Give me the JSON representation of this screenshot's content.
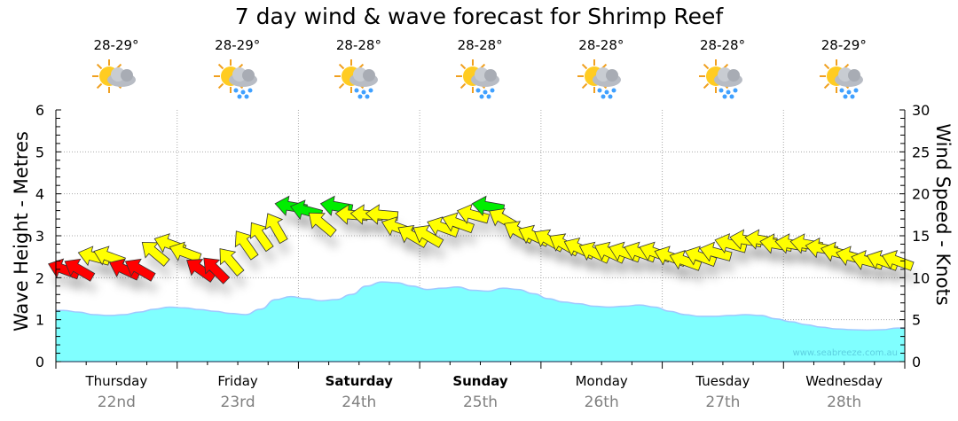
{
  "title": "7 day wind & wave forecast for Shrimp Reef",
  "days": [
    {
      "name": "Thursday",
      "date": "22nd",
      "temp": "28-29°",
      "icon": "sun-cloud-icon",
      "bold": false
    },
    {
      "name": "Friday",
      "date": "23rd",
      "temp": "28-29°",
      "icon": "sun-cloud-rain-icon",
      "bold": false
    },
    {
      "name": "Saturday",
      "date": "24th",
      "temp": "28-28°",
      "icon": "sun-cloud-rain-icon",
      "bold": true
    },
    {
      "name": "Sunday",
      "date": "25th",
      "temp": "28-28°",
      "icon": "sun-cloud-rain-icon",
      "bold": true
    },
    {
      "name": "Monday",
      "date": "26th",
      "temp": "28-28°",
      "icon": "sun-cloud-rain-icon",
      "bold": false
    },
    {
      "name": "Tuesday",
      "date": "27th",
      "temp": "28-28°",
      "icon": "sun-cloud-rain-icon",
      "bold": false
    },
    {
      "name": "Wednesday",
      "date": "28th",
      "temp": "28-29°",
      "icon": "sun-cloud-rain-icon",
      "bold": false
    }
  ],
  "watermark": "www.seabreeze.com.au",
  "chart_data": {
    "type": "area",
    "title": "7 day wind & wave forecast for Shrimp Reef",
    "ylabel": "Wave Height - Metres",
    "y2label": "Wind Speed - Knots",
    "ylim": [
      0,
      6
    ],
    "y2lim": [
      0,
      30
    ],
    "yticks": [
      "0",
      "1",
      "2",
      "3",
      "4",
      "5",
      "6"
    ],
    "y2ticks": [
      "0",
      "5",
      "10",
      "15",
      "20",
      "25",
      "30"
    ],
    "grid": true,
    "points_per_day": 8,
    "colors": {
      "wave": "#80ffff",
      "wave_line": "#a0c8ff",
      "red": "#ff0000",
      "yellow": "#ffff00",
      "green": "#00ee00"
    },
    "wave_height_m": [
      1.22,
      1.18,
      1.12,
      1.1,
      1.12,
      1.18,
      1.25,
      1.3,
      1.28,
      1.24,
      1.2,
      1.15,
      1.12,
      1.25,
      1.48,
      1.55,
      1.5,
      1.45,
      1.48,
      1.6,
      1.8,
      1.9,
      1.88,
      1.8,
      1.72,
      1.75,
      1.78,
      1.7,
      1.68,
      1.75,
      1.72,
      1.62,
      1.5,
      1.42,
      1.38,
      1.32,
      1.3,
      1.32,
      1.35,
      1.3,
      1.2,
      1.12,
      1.08,
      1.08,
      1.1,
      1.12,
      1.1,
      1.02,
      0.95,
      0.88,
      0.82,
      0.78,
      0.76,
      0.75,
      0.76,
      0.8
    ],
    "wind_knots": [
      11,
      11,
      12.5,
      12.5,
      11,
      11,
      13,
      14,
      13,
      11,
      11,
      12,
      14,
      15,
      16,
      18.5,
      18,
      16.5,
      18.5,
      17.5,
      17.5,
      17.5,
      16,
      15,
      15,
      16,
      16.5,
      17.5,
      18.5,
      17,
      15.5,
      15,
      14.5,
      14,
      13.5,
      13,
      13,
      13,
      13,
      13,
      12.5,
      12,
      12.5,
      13,
      14,
      14.5,
      14.5,
      14,
      14,
      14,
      13.5,
      13,
      12.5,
      12,
      12,
      12
    ],
    "wind_color": [
      "red",
      "red",
      "yellow",
      "yellow",
      "red",
      "red",
      "yellow",
      "yellow",
      "yellow",
      "red",
      "red",
      "yellow",
      "yellow",
      "yellow",
      "yellow",
      "green",
      "green",
      "yellow",
      "green",
      "yellow",
      "yellow",
      "yellow",
      "yellow",
      "yellow",
      "yellow",
      "yellow",
      "yellow",
      "yellow",
      "green",
      "yellow",
      "yellow",
      "yellow",
      "yellow",
      "yellow",
      "yellow",
      "yellow",
      "yellow",
      "yellow",
      "yellow",
      "yellow",
      "yellow",
      "yellow",
      "yellow",
      "yellow",
      "yellow",
      "yellow",
      "yellow",
      "yellow",
      "yellow",
      "yellow",
      "yellow",
      "yellow",
      "yellow",
      "yellow",
      "yellow",
      "yellow"
    ],
    "wind_direction_deg": [
      -160,
      -150,
      -165,
      -160,
      -155,
      -150,
      -140,
      -160,
      -160,
      -145,
      -135,
      -130,
      -125,
      -125,
      -120,
      -170,
      -165,
      -140,
      -170,
      -175,
      -175,
      -175,
      -160,
      -150,
      -150,
      -160,
      -160,
      -165,
      -170,
      -150,
      -150,
      -155,
      -150,
      -150,
      -155,
      -155,
      -155,
      -160,
      -160,
      -160,
      -160,
      -160,
      -160,
      -165,
      -165,
      -170,
      -170,
      -170,
      -170,
      -170,
      -170,
      -165,
      -165,
      -165,
      -160,
      -160
    ]
  }
}
